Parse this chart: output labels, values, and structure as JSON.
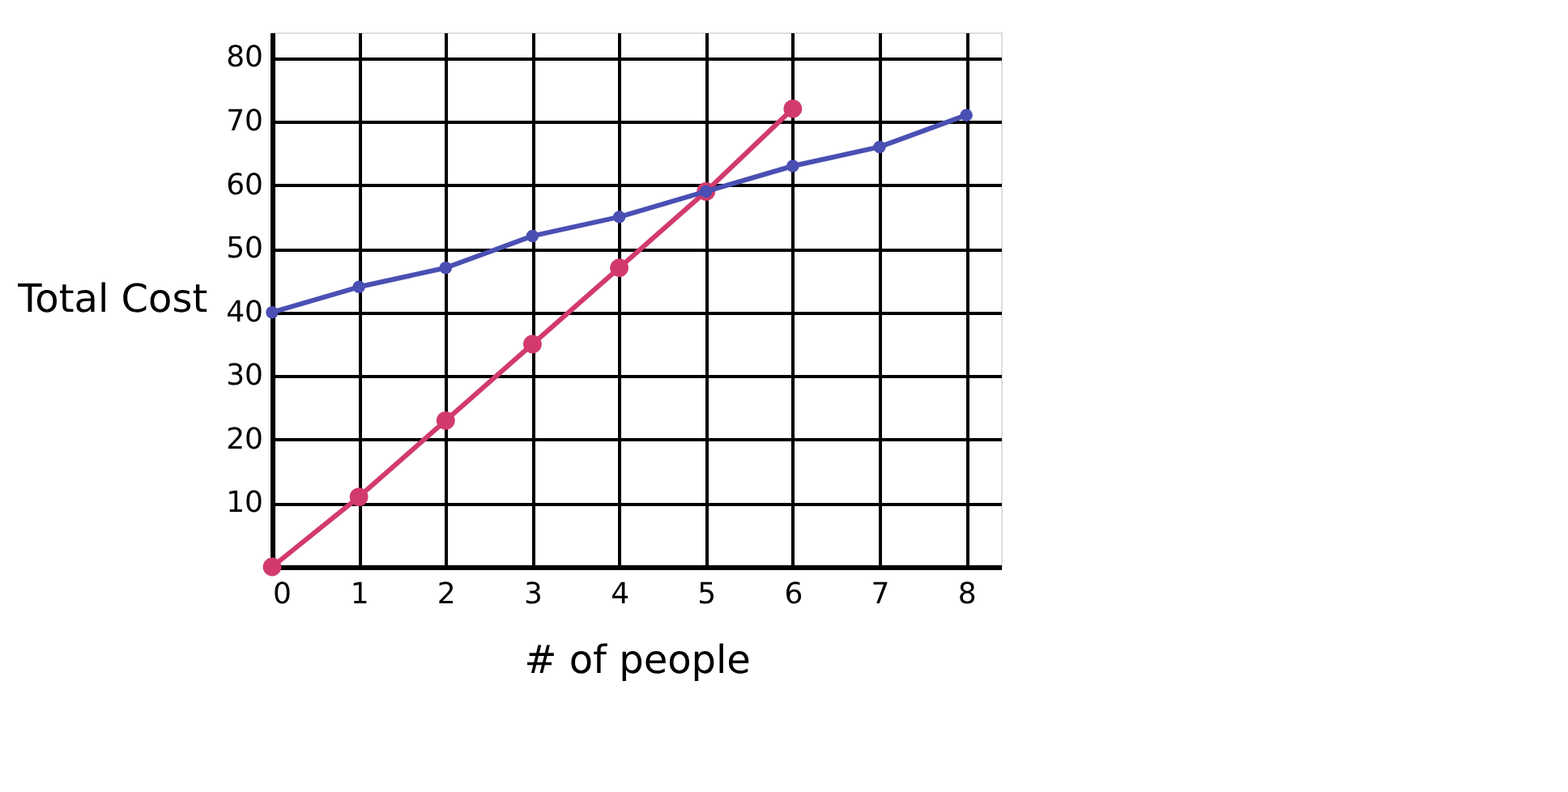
{
  "chart_data": {
    "type": "line",
    "xlabel": "# of people",
    "ylabel": "Total Cost",
    "series": [
      {
        "color": "#d23a6e",
        "x": [
          0,
          1,
          2,
          3,
          4,
          5,
          6
        ],
        "values": [
          0,
          11,
          23,
          35,
          47,
          59,
          72
        ]
      },
      {
        "color": "#4a4fb3",
        "x": [
          0,
          1,
          2,
          3,
          4,
          5,
          6,
          7,
          8
        ],
        "values": [
          40,
          44,
          47,
          52,
          55,
          59,
          63,
          66,
          71
        ]
      }
    ],
    "xlim": [
      0,
      8.4
    ],
    "xticks": [
      0,
      1,
      2,
      3,
      4,
      5,
      6,
      7,
      8
    ],
    "ylim": [
      0,
      84
    ],
    "yticks": [
      10,
      20,
      30,
      40,
      50,
      60,
      70,
      80
    ],
    "grid": true,
    "marker": "circle",
    "line_style": "solid"
  }
}
